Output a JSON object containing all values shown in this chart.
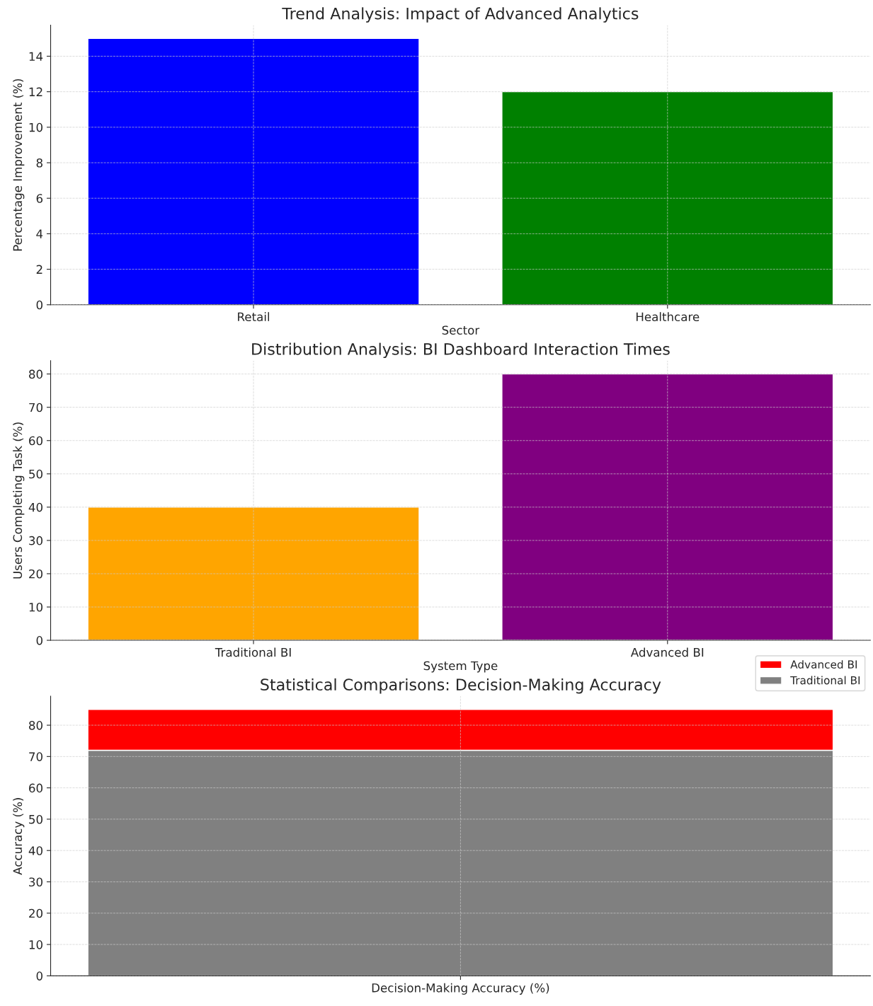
{
  "chart_data": [
    {
      "type": "bar",
      "title": "Trend Analysis: Impact of Advanced Analytics",
      "xlabel": "Sector",
      "ylabel": "Percentage Improvement (%)",
      "categories": [
        "Retail",
        "Healthcare"
      ],
      "values": [
        15,
        12
      ],
      "colors": [
        "#0000ff",
        "#008000"
      ],
      "ylim": [
        0,
        15.75
      ],
      "yticks": [
        0,
        2,
        4,
        6,
        8,
        10,
        12,
        14
      ],
      "grid": true
    },
    {
      "type": "bar",
      "title": "Distribution Analysis: BI Dashboard Interaction Times",
      "xlabel": "System Type",
      "ylabel": "Users Completing Task (%)",
      "categories": [
        "Traditional BI",
        "Advanced BI"
      ],
      "values": [
        40,
        80
      ],
      "colors": [
        "#ffa500",
        "#800080"
      ],
      "ylim": [
        0,
        84
      ],
      "yticks": [
        0,
        10,
        20,
        30,
        40,
        50,
        60,
        70,
        80
      ],
      "grid": true
    },
    {
      "type": "bar",
      "title": "Statistical Comparisons: Decision-Making Accuracy",
      "ylabel": "Accuracy (%)",
      "categories": [
        "Decision-Making Accuracy (%)"
      ],
      "stacked": true,
      "series": [
        {
          "name": "Traditional BI",
          "color": "#808080",
          "values": [
            72
          ]
        },
        {
          "name": "Advanced BI",
          "color": "#ff0000",
          "values": [
            13
          ]
        }
      ],
      "ylim": [
        0,
        89.25
      ],
      "yticks": [
        0,
        10,
        20,
        30,
        40,
        50,
        60,
        70,
        80
      ],
      "grid": true,
      "legend": "top right"
    }
  ]
}
